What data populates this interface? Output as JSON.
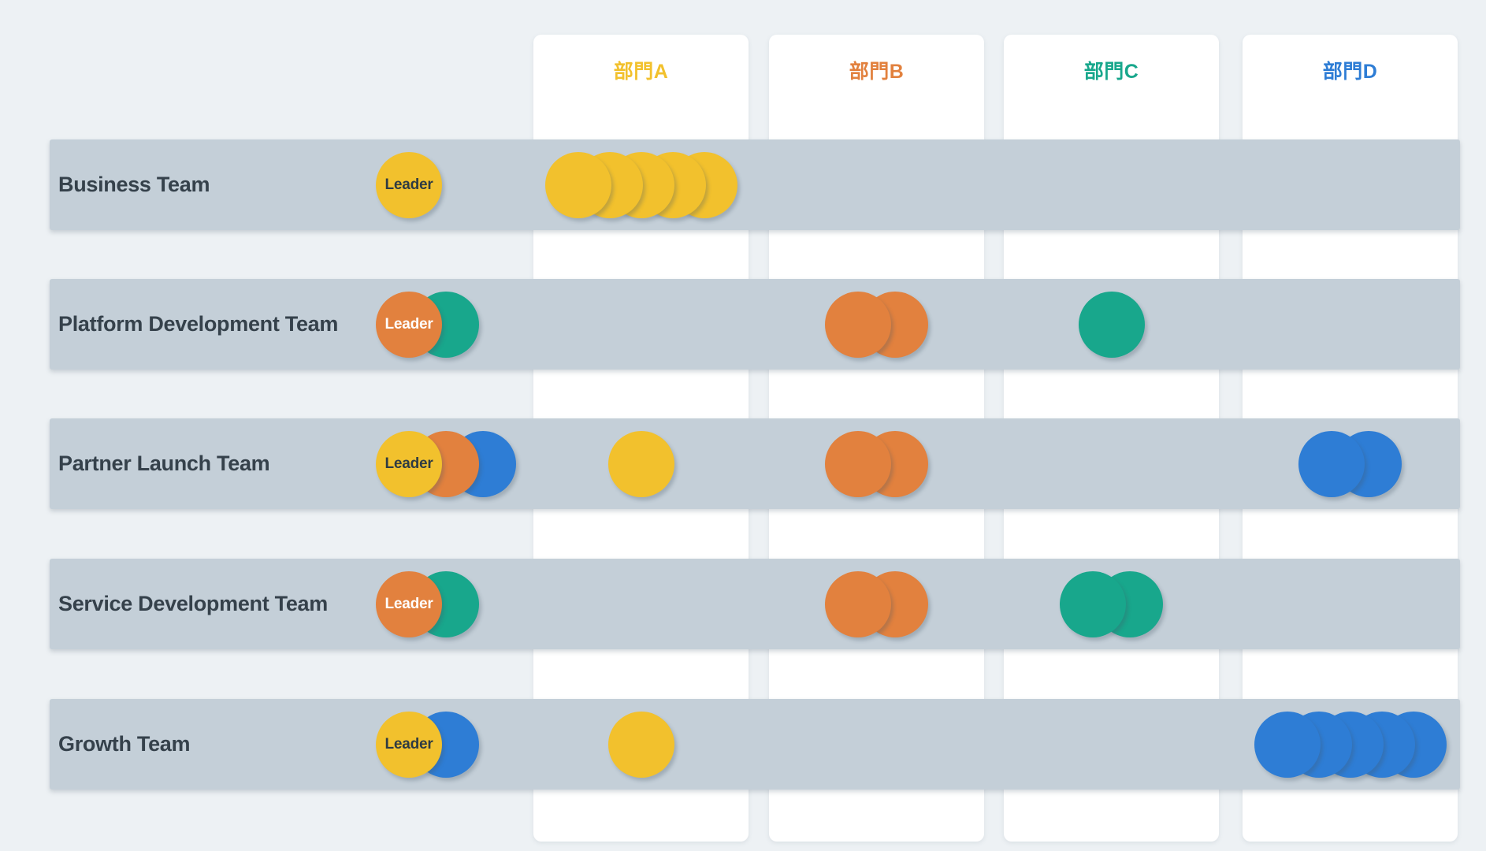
{
  "page": {
    "background": "#EDF1F4",
    "row_band_color": "#C4CFD8",
    "column_card_color": "#FFFFFF",
    "row_label_color": "#35414B"
  },
  "palette": {
    "yellow": "#F2C12D",
    "orange": "#E2813E",
    "teal": "#18A78C",
    "blue": "#2E7DD5"
  },
  "leader_text_colors": {
    "yellow": "#2E3B43",
    "orange": "#FFFFFF",
    "teal": "#FFFFFF",
    "blue": "#FFFFFF"
  },
  "leader_label": "Leader",
  "columns": [
    {
      "label": "部門A",
      "color": "yellow"
    },
    {
      "label": "部門B",
      "color": "orange"
    },
    {
      "label": "部門C",
      "color": "teal"
    },
    {
      "label": "部門D",
      "color": "blue"
    }
  ],
  "rows": [
    {
      "name": "Business Team",
      "leaders": [
        "yellow"
      ],
      "members": [
        {
          "col": 0,
          "color": "yellow",
          "count": 5
        }
      ]
    },
    {
      "name": "Platform Development Team",
      "leaders": [
        "orange",
        "teal"
      ],
      "members": [
        {
          "col": 1,
          "color": "orange",
          "count": 2
        },
        {
          "col": 2,
          "color": "teal",
          "count": 1
        }
      ]
    },
    {
      "name": "Partner Launch Team",
      "leaders": [
        "yellow",
        "orange",
        "blue"
      ],
      "members": [
        {
          "col": 0,
          "color": "yellow",
          "count": 1
        },
        {
          "col": 1,
          "color": "orange",
          "count": 2
        },
        {
          "col": 3,
          "color": "blue",
          "count": 2
        }
      ]
    },
    {
      "name": "Service Development Team",
      "leaders": [
        "orange",
        "teal"
      ],
      "members": [
        {
          "col": 1,
          "color": "orange",
          "count": 2
        },
        {
          "col": 2,
          "color": "teal",
          "count": 2
        }
      ]
    },
    {
      "name": "Growth Team",
      "leaders": [
        "yellow",
        "blue"
      ],
      "members": [
        {
          "col": 0,
          "color": "yellow",
          "count": 1
        },
        {
          "col": 3,
          "color": "blue",
          "count": 5
        }
      ]
    }
  ]
}
